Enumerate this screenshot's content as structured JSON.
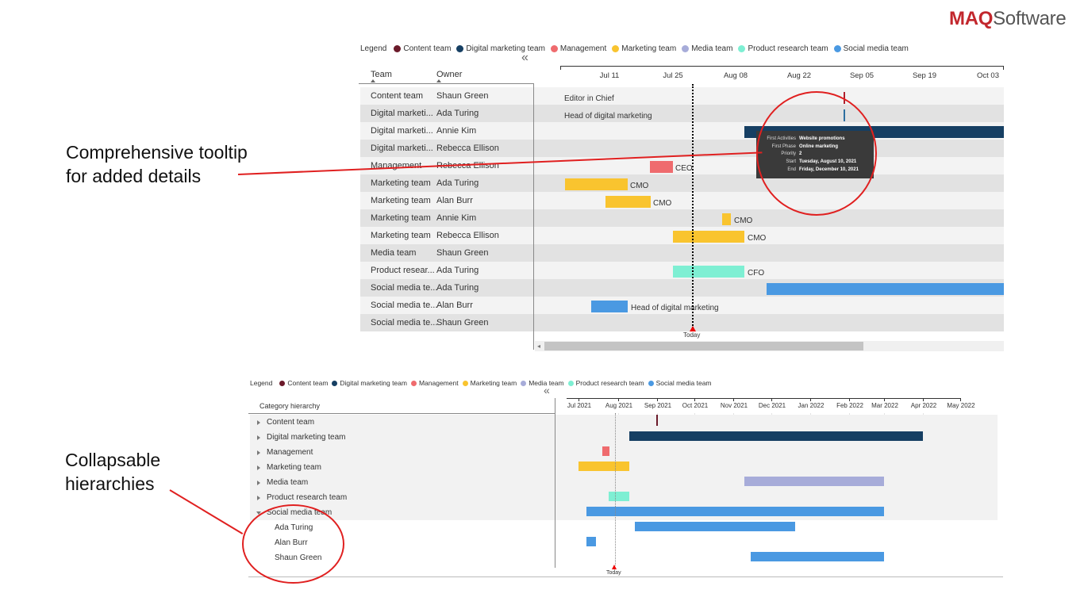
{
  "brand": {
    "maq": "MAQ",
    "software": "Software"
  },
  "captions": {
    "tooltip": [
      "Comprehensive tooltip",
      "for added details"
    ],
    "hierarchy": [
      "Collapsable",
      "hierarchies"
    ]
  },
  "colors": {
    "content": "#6b1a2a",
    "digital": "#163f63",
    "management": "#ef6b6e",
    "marketing": "#f9c42f",
    "media": "#a7acd9",
    "product": "#7eefd3",
    "social": "#4a99e2",
    "accent_red": "#e02020"
  },
  "legend": {
    "title": "Legend",
    "items": [
      {
        "label": "Content team",
        "color": "#6b1a2a"
      },
      {
        "label": "Digital marketing team",
        "color": "#163f63"
      },
      {
        "label": "Management",
        "color": "#ef6b6e"
      },
      {
        "label": "Marketing team",
        "color": "#f9c42f"
      },
      {
        "label": "Media team",
        "color": "#a7acd9"
      },
      {
        "label": "Product research team",
        "color": "#7eefd3"
      },
      {
        "label": "Social media team",
        "color": "#4a99e2"
      }
    ]
  },
  "top_chart": {
    "collapse_glyph": "«",
    "headers": {
      "team": "Team",
      "owner": "Owner"
    },
    "ticks": [
      "Jul 11",
      "Jul 25",
      "Aug 08",
      "Aug 22",
      "Sep 05",
      "Sep 19",
      "Oct 03"
    ],
    "today_label": "Today",
    "rows": [
      {
        "team": "Content team",
        "owner": "Shaun Green"
      },
      {
        "team": "Digital marketi...",
        "owner": "Ada Turing"
      },
      {
        "team": "Digital marketi...",
        "owner": "Annie Kim"
      },
      {
        "team": "Digital marketi...",
        "owner": "Rebecca Ellison"
      },
      {
        "team": "Management",
        "owner": "Rebecca Ellison"
      },
      {
        "team": "Marketing team",
        "owner": "Ada Turing"
      },
      {
        "team": "Marketing team",
        "owner": "Alan Burr"
      },
      {
        "team": "Marketing team",
        "owner": "Annie Kim"
      },
      {
        "team": "Marketing team",
        "owner": "Rebecca Ellison"
      },
      {
        "team": "Media team",
        "owner": "Shaun Green"
      },
      {
        "team": "Product resear...",
        "owner": "Ada Turing"
      },
      {
        "team": "Social media te...",
        "owner": "Ada Turing"
      },
      {
        "team": "Social media te...",
        "owner": "Alan Burr"
      },
      {
        "team": "Social media te...",
        "owner": "Shaun Green"
      }
    ],
    "bar_labels": [
      "Editor in Chief",
      "Head of digital marketing",
      "CEO",
      "CMO",
      "CMO",
      "CMO",
      "CMO",
      "CFO",
      "Head of digital marketing"
    ],
    "tooltip": [
      {
        "key": "First Activities",
        "value": "Website promotions"
      },
      {
        "key": "First Phase",
        "value": "Online marketing"
      },
      {
        "key": "Priority",
        "value": "2"
      },
      {
        "key": "Start",
        "value": "Tuesday, August 10, 2021"
      },
      {
        "key": "End",
        "value": "Friday, December 10, 2021"
      }
    ]
  },
  "bottom_chart": {
    "collapse_glyph": "«",
    "header": "Category hierarchy",
    "ticks": [
      "Jul 2021",
      "Aug 2021",
      "Sep 2021",
      "Oct 2021",
      "Nov 2021",
      "Dec 2021",
      "Jan 2022",
      "Feb 2022",
      "Mar 2022",
      "Apr 2022",
      "May 2022"
    ],
    "today_label": "Today",
    "rows": [
      {
        "label": "Content team",
        "level": 0,
        "expanded": false
      },
      {
        "label": "Digital marketing team",
        "level": 0,
        "expanded": false
      },
      {
        "label": "Management",
        "level": 0,
        "expanded": false
      },
      {
        "label": "Marketing team",
        "level": 0,
        "expanded": false
      },
      {
        "label": "Media team",
        "level": 0,
        "expanded": false
      },
      {
        "label": "Product research team",
        "level": 0,
        "expanded": false
      },
      {
        "label": "Social media team",
        "level": 0,
        "expanded": true
      },
      {
        "label": "Ada Turing",
        "level": 1,
        "expanded": false
      },
      {
        "label": "Alan Burr",
        "level": 1,
        "expanded": false
      },
      {
        "label": "Shaun Green",
        "level": 1,
        "expanded": false
      }
    ]
  }
}
